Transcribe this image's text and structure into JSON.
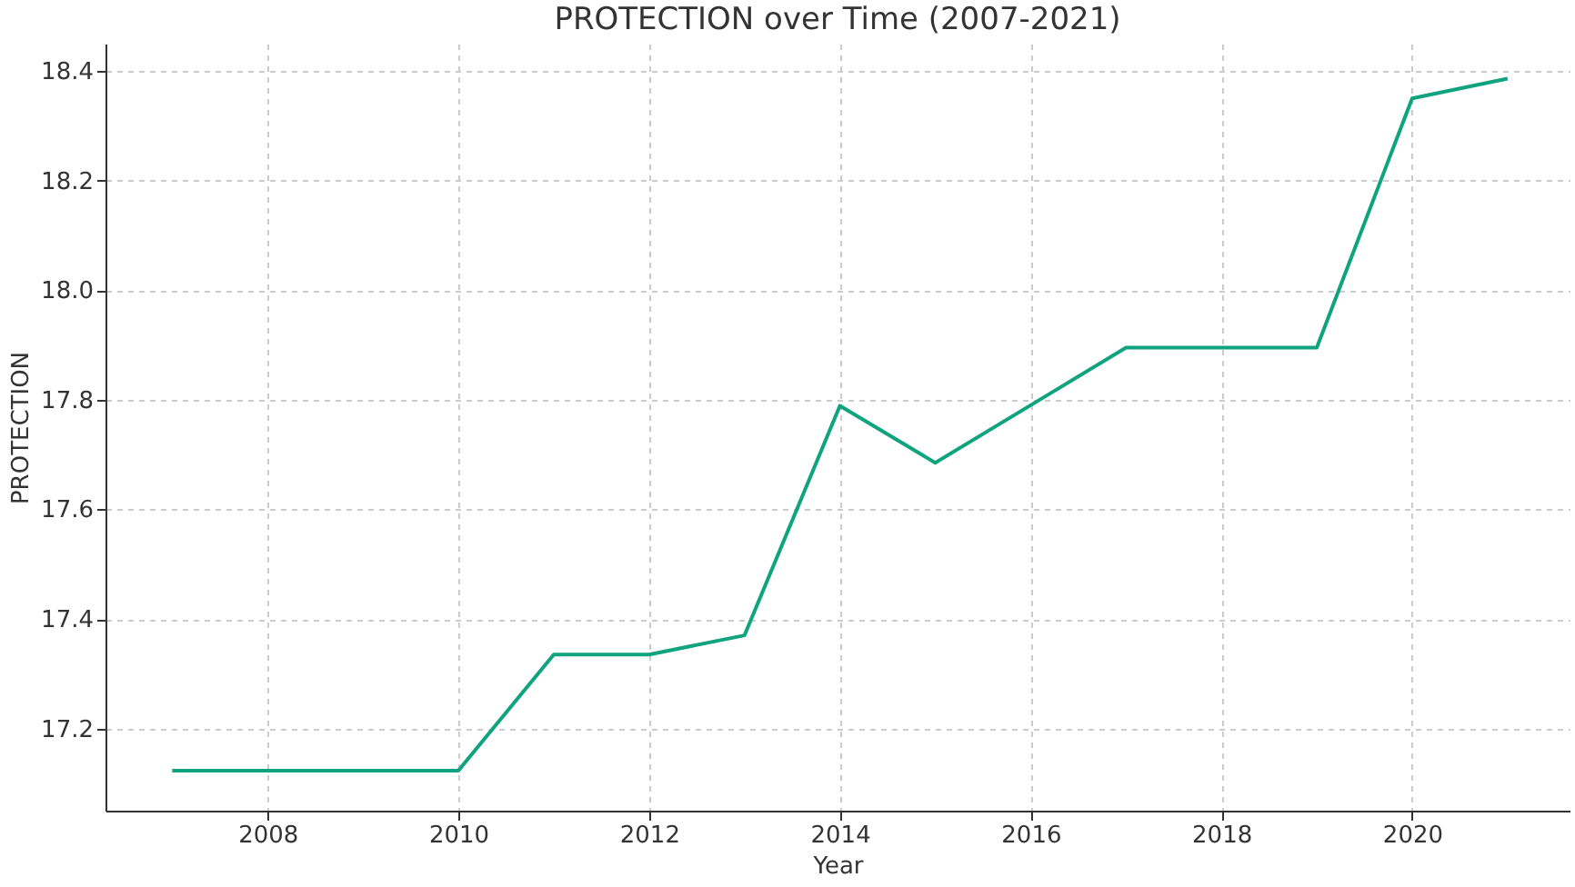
{
  "chart_data": {
    "type": "line",
    "title": "PROTECTION over Time (2007-2021)",
    "xlabel": "Year",
    "ylabel": "PROTECTION",
    "x": [
      2007,
      2008,
      2009,
      2010,
      2011,
      2012,
      2013,
      2014,
      2015,
      2016,
      2017,
      2018,
      2019,
      2020,
      2021
    ],
    "series": [
      {
        "color": "#10a37f",
        "values": [
          17.123,
          17.123,
          17.123,
          17.123,
          17.335,
          17.335,
          17.37,
          17.789,
          17.685,
          17.79,
          17.895,
          17.895,
          17.895,
          18.35,
          18.386
        ]
      }
    ],
    "xlim": [
      2006.3,
      2021.65
    ],
    "xticks": [
      2008,
      2010,
      2012,
      2014,
      2016,
      2018,
      2020
    ],
    "ylim": [
      17.05,
      18.45
    ],
    "yticks": [
      17.2,
      17.4,
      17.6,
      17.8,
      {
        "value": 18.0,
        "label": "18.0"
      },
      18.2,
      18.4
    ],
    "grid": true,
    "marker": "none",
    "line_style": "solid"
  }
}
